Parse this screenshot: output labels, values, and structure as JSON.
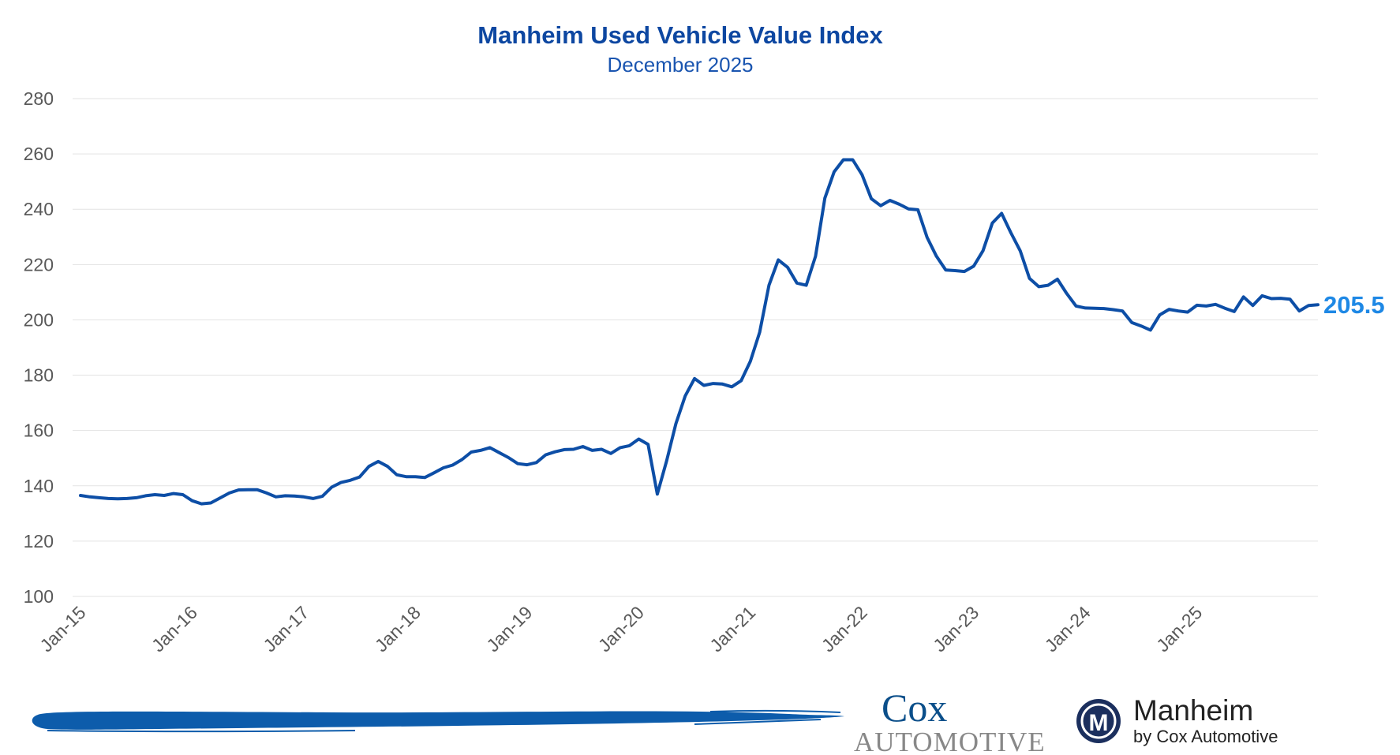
{
  "chart_data": {
    "type": "line",
    "title": "Manheim Used Vehicle Value Index",
    "subtitle": "December 2025",
    "xlabel": "",
    "ylabel": "",
    "ylim": [
      100,
      280
    ],
    "y_ticks": [
      100,
      120,
      140,
      160,
      180,
      200,
      220,
      240,
      260,
      280
    ],
    "x_tick_labels": [
      "Jan-15",
      "Jan-16",
      "Jan-17",
      "Jan-18",
      "Jan-19",
      "Jan-20",
      "Jan-21",
      "Jan-22",
      "Jan-23",
      "Jan-24",
      "Jan-25"
    ],
    "x_start": "2015-01",
    "x_end": "2025-12",
    "grid": true,
    "legend": "none",
    "line_color": "#0d4ea6",
    "last_label_color": "#1e88e5",
    "last_value_label": "205.5",
    "series": [
      {
        "values": [
          136.5,
          136.0,
          135.7,
          135.4,
          135.3,
          135.4,
          135.7,
          136.4,
          136.8,
          136.5,
          137.2,
          136.8,
          134.6,
          133.5,
          133.8,
          135.6,
          137.4,
          138.5,
          138.6,
          138.6,
          137.4,
          136.0,
          136.4,
          136.3,
          136.0,
          135.4,
          136.2,
          139.5,
          141.2,
          142.0,
          143.2,
          147.0,
          148.8,
          147.0,
          144.0,
          143.3,
          143.3,
          143.0,
          144.7,
          146.5,
          147.5,
          149.5,
          152.2,
          152.8,
          153.8,
          152.0,
          150.2,
          148.0,
          147.6,
          148.4,
          151.2,
          152.3,
          153.1,
          153.2,
          154.2,
          152.8,
          153.2,
          151.7,
          153.8,
          154.5,
          156.9,
          155.0,
          137.0,
          149.0,
          162.5,
          172.5,
          178.8,
          176.3,
          177.0,
          176.8,
          175.8,
          178.0,
          185.0,
          195.5,
          212.5,
          221.7,
          219.0,
          213.3,
          212.5,
          223.0,
          244.0,
          253.5,
          257.9,
          257.9,
          252.5,
          243.8,
          241.3,
          243.2,
          241.8,
          240.1,
          239.8,
          229.8,
          223.0,
          218.0,
          217.8,
          217.5,
          219.4,
          225.0,
          235.0,
          238.5,
          231.5,
          225.0,
          215.0,
          212.0,
          212.5,
          214.7,
          209.5,
          205.0,
          204.3,
          204.2,
          204.1,
          203.7,
          203.2,
          199.0,
          197.8,
          196.3,
          201.8,
          203.8,
          203.2,
          202.8,
          205.3,
          205.0,
          205.6,
          204.2,
          203.0,
          208.3,
          205.2,
          208.7,
          207.7,
          207.8,
          207.5,
          203.2,
          205.2,
          205.5
        ]
      }
    ]
  },
  "footer": {
    "cox_logo_line1": "Cox",
    "cox_logo_line2": "AUTOMOTIVE",
    "manheim_logo_name": "Manheim",
    "manheim_logo_tagline": "by Cox Automotive",
    "manheim_badge_letter": "M",
    "brush_color": "#0d5cab"
  }
}
